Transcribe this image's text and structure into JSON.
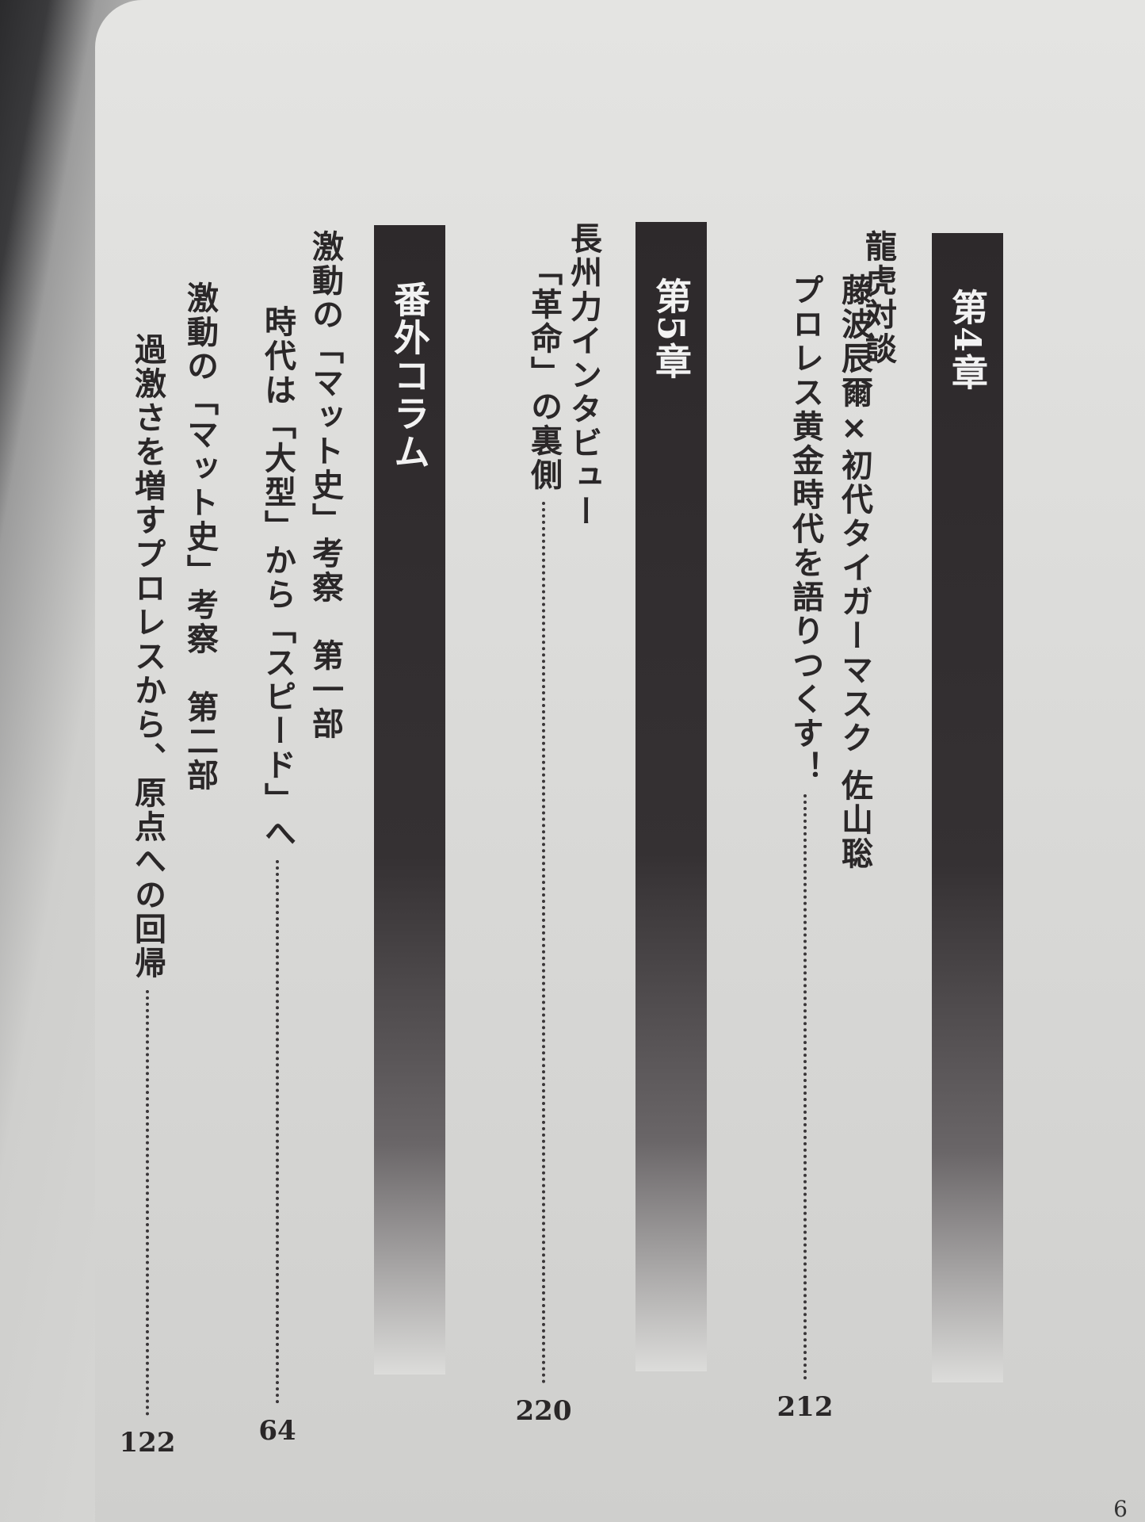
{
  "toc": {
    "chapters": [
      {
        "label": "第4章",
        "entries": [
          {
            "lines": [
              "龍虎対談",
              "藤波辰爾×初代タイガーマスク 佐山聡",
              "プロレス黄金時代を語りつくす！"
            ],
            "page": "212"
          }
        ]
      },
      {
        "label": "第5章",
        "entries": [
          {
            "lines": [
              "長州力インタビュー",
              "「革命」の裏側"
            ],
            "page": "220"
          }
        ]
      },
      {
        "label": "番外コラム",
        "entries": [
          {
            "lines": [
              "激動の「マット史」考察　第一部",
              "時代は「大型」から「スピード」へ"
            ],
            "page": "64"
          },
          {
            "lines": [
              "激動の「マット史」考察　第二部",
              "過激さを増すプロレスから、原点への回帰"
            ],
            "page": "122"
          }
        ]
      }
    ]
  },
  "page_number": "6",
  "colors": {
    "bar": "#2d292b",
    "paper": "#dcdcda",
    "text": "#2a2728"
  }
}
